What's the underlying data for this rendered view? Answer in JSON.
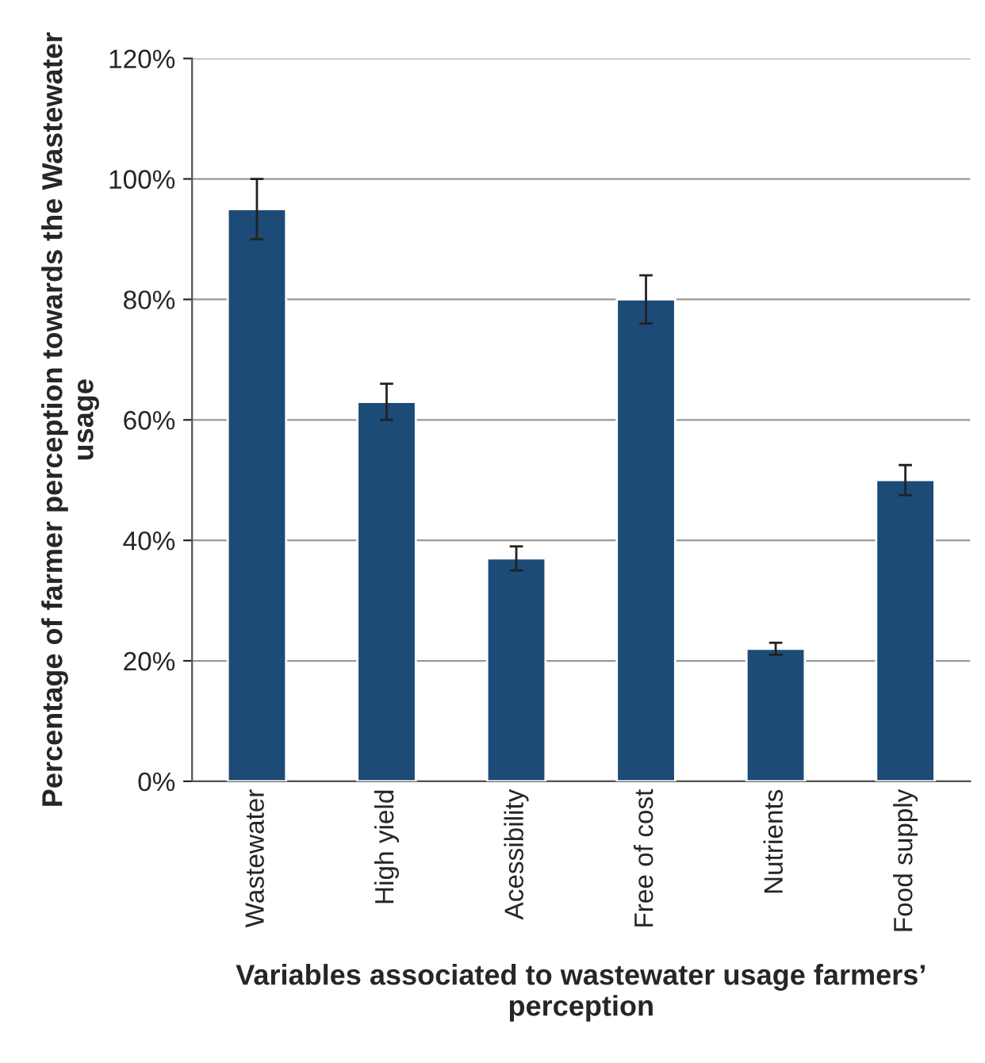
{
  "chart_data": {
    "type": "bar",
    "xlabel": "Variables associated to wastewater usage farmers’ perception",
    "ylabel": "Percentage of farmer perception towards the Wastewater usage",
    "categories": [
      "Wastewater",
      "High yield",
      "Acessibility",
      "Free of cost",
      "Nutrients",
      "Food supply"
    ],
    "values": [
      95,
      63,
      37,
      80,
      22,
      50
    ],
    "errors": [
      5,
      3,
      2,
      4,
      1,
      2.5
    ],
    "color": "#1d4b78",
    "ylim": [
      0,
      120
    ],
    "yticks": [
      {
        "value": 0,
        "label": "0%"
      },
      {
        "value": 20,
        "label": "20%"
      },
      {
        "value": 40,
        "label": "40%"
      },
      {
        "value": 60,
        "label": "60%"
      },
      {
        "value": 80,
        "label": "80%"
      },
      {
        "value": 100,
        "label": "100%"
      },
      {
        "value": 120,
        "label": "120%"
      }
    ],
    "grid": "y",
    "legend": false
  }
}
